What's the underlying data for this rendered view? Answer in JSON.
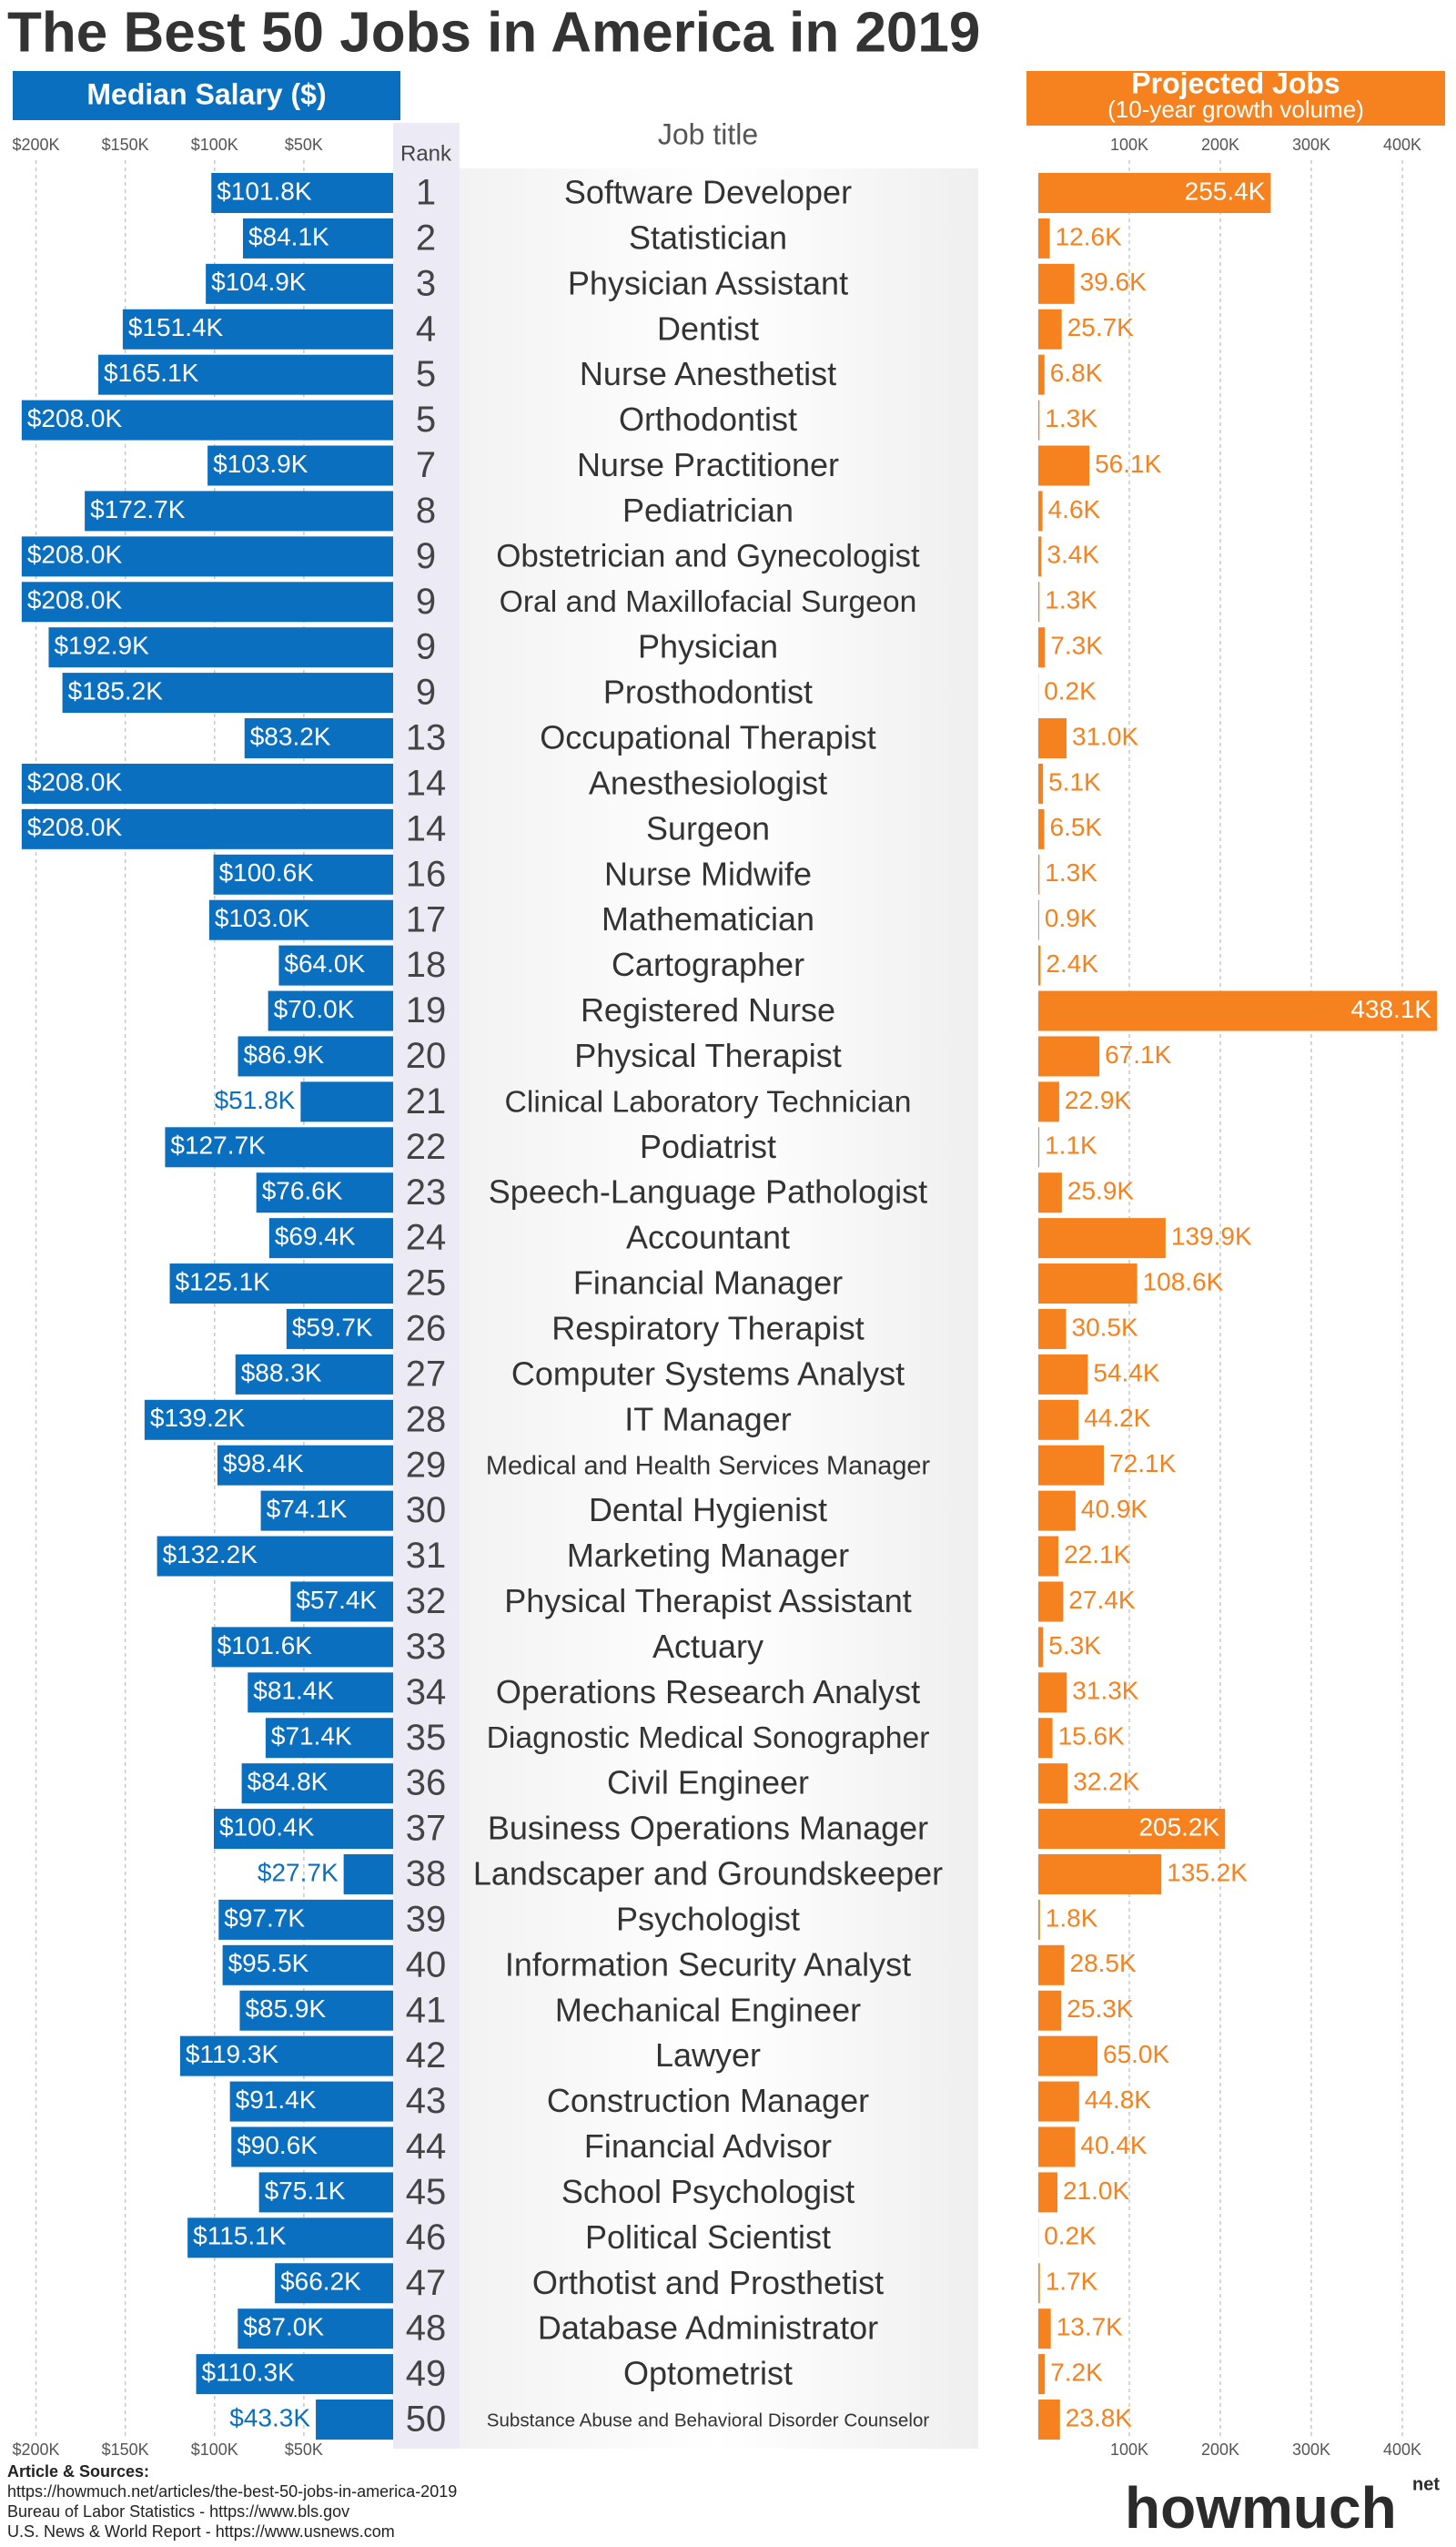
{
  "chart_data": {
    "type": "butterfly",
    "title": "The Best 50 Jobs in America in 2019",
    "rank_label": "Rank",
    "category_label": "Job title",
    "categories": [
      "Software Developer",
      "Statistician",
      "Physician Assistant",
      "Dentist",
      "Nurse Anesthetist",
      "Orthodontist",
      "Nurse Practitioner",
      "Pediatrician",
      "Obstetrician and Gynecologist",
      "Oral and Maxillofacial Surgeon",
      "Physician",
      "Prosthodontist",
      "Occupational Therapist",
      "Anesthesiologist",
      "Surgeon",
      "Nurse Midwife",
      "Mathematician",
      "Cartographer",
      "Registered Nurse",
      "Physical Therapist",
      "Clinical Laboratory Technician",
      "Podiatrist",
      "Speech-Language Pathologist",
      "Accountant",
      "Financial Manager",
      "Respiratory Therapist",
      "Computer Systems Analyst",
      "IT Manager",
      "Medical and Health Services Manager",
      "Dental Hygienist",
      "Marketing Manager",
      "Physical Therapist Assistant",
      "Actuary",
      "Operations Research Analyst",
      "Diagnostic Medical Sonographer",
      "Civil Engineer",
      "Business Operations Manager",
      "Landscaper and Groundskeeper",
      "Psychologist",
      "Information Security Analyst",
      "Mechanical Engineer",
      "Lawyer",
      "Construction Manager",
      "Financial Advisor",
      "School Psychologist",
      "Political Scientist",
      "Orthotist and Prosthetist",
      "Database Administrator",
      "Optometrist",
      "Substance Abuse and Behavioral Disorder Counselor"
    ],
    "ranks": [
      1,
      2,
      3,
      4,
      5,
      5,
      7,
      8,
      9,
      9,
      9,
      9,
      13,
      14,
      14,
      16,
      17,
      18,
      19,
      20,
      21,
      22,
      23,
      24,
      25,
      26,
      27,
      28,
      29,
      30,
      31,
      32,
      33,
      34,
      35,
      36,
      37,
      38,
      39,
      40,
      41,
      42,
      43,
      44,
      45,
      46,
      47,
      48,
      49,
      50
    ],
    "left": {
      "title": "Median Salary ($)",
      "color": "#0b6fc0",
      "reversed": true,
      "grid": true,
      "xlim": [
        0,
        212
      ],
      "xticks": [
        {
          "value": 200,
          "label": "$200K"
        },
        {
          "value": 150,
          "label": "$150K"
        },
        {
          "value": 100,
          "label": "$100K"
        },
        {
          "value": 50,
          "label": "$50K"
        }
      ],
      "values": [
        101.8,
        84.1,
        104.9,
        151.4,
        165.1,
        208.0,
        103.9,
        172.7,
        208.0,
        208.0,
        192.9,
        185.2,
        83.2,
        208.0,
        208.0,
        100.6,
        103.0,
        64.0,
        70.0,
        86.9,
        51.8,
        127.7,
        76.6,
        69.4,
        125.1,
        59.7,
        88.3,
        139.2,
        98.4,
        74.1,
        132.2,
        57.4,
        101.6,
        81.4,
        71.4,
        84.8,
        100.4,
        27.7,
        97.7,
        95.5,
        85.9,
        119.3,
        91.4,
        90.6,
        75.1,
        115.1,
        66.2,
        87.0,
        110.3,
        43.3
      ],
      "value_labels": [
        "$101.8K",
        "$84.1K",
        "$104.9K",
        "$151.4K",
        "$165.1K",
        "$208.0K",
        "$103.9K",
        "$172.7K",
        "$208.0K",
        "$208.0K",
        "$192.9K",
        "$185.2K",
        "$83.2K",
        "$208.0K",
        "$208.0K",
        "$100.6K",
        "$103.0K",
        "$64.0K",
        "$70.0K",
        "$86.9K",
        "$51.8K",
        "$127.7K",
        "$76.6K",
        "$69.4K",
        "$125.1K",
        "$59.7K",
        "$88.3K",
        "$139.2K",
        "$98.4K",
        "$74.1K",
        "$132.2K",
        "$57.4K",
        "$101.6K",
        "$81.4K",
        "$71.4K",
        "$84.8K",
        "$100.4K",
        "$27.7K",
        "$97.7K",
        "$95.5K",
        "$85.9K",
        "$119.3K",
        "$91.4K",
        "$90.6K",
        "$75.1K",
        "$115.1K",
        "$66.2K",
        "$87.0K",
        "$110.3K",
        "$43.3K"
      ]
    },
    "right": {
      "title": "Projected Jobs",
      "subtitle": "(10-year growth volume)",
      "color": "#f5821f",
      "reversed": false,
      "grid": true,
      "xlim": [
        0,
        440
      ],
      "xticks": [
        {
          "value": 100,
          "label": "100K"
        },
        {
          "value": 200,
          "label": "200K"
        },
        {
          "value": 300,
          "label": "300K"
        },
        {
          "value": 400,
          "label": "400K"
        }
      ],
      "values": [
        255.4,
        12.6,
        39.6,
        25.7,
        6.8,
        1.3,
        56.1,
        4.6,
        3.4,
        1.3,
        7.3,
        0.2,
        31.0,
        5.1,
        6.5,
        1.3,
        0.9,
        2.4,
        438.1,
        67.1,
        22.9,
        1.1,
        25.9,
        139.9,
        108.6,
        30.5,
        54.4,
        44.2,
        72.1,
        40.9,
        22.1,
        27.4,
        5.3,
        31.3,
        15.6,
        32.2,
        205.2,
        135.2,
        1.8,
        28.5,
        25.3,
        65.0,
        44.8,
        40.4,
        21.0,
        0.2,
        1.7,
        13.7,
        7.2,
        23.8
      ],
      "value_labels": [
        "255.4K",
        "12.6K",
        "39.6K",
        "25.7K",
        "6.8K",
        "1.3K",
        "56.1K",
        "4.6K",
        "3.4K",
        "1.3K",
        "7.3K",
        "0.2K",
        "31.0K",
        "5.1K",
        "6.5K",
        "1.3K",
        "0.9K",
        "2.4K",
        "438.1K",
        "67.1K",
        "22.9K",
        "1.1K",
        "25.9K",
        "139.9K",
        "108.6K",
        "30.5K",
        "54.4K",
        "44.2K",
        "72.1K",
        "40.9K",
        "22.1K",
        "27.4K",
        "5.3K",
        "31.3K",
        "15.6K",
        "32.2K",
        "205.2K",
        "135.2K",
        "1.8K",
        "28.5K",
        "25.3K",
        "65.0K",
        "44.8K",
        "40.4K",
        "21.0K",
        "0.2K",
        "1.7K",
        "13.7K",
        "7.2K",
        "23.8K"
      ]
    }
  },
  "sources": {
    "heading": "Article & Sources:",
    "lines": [
      "https://howmuch.net/articles/the-best-50-jobs-in-america-2019",
      "Bureau of Labor Statistics - https://www.bls.gov",
      "U.S. News & World Report - https://www.usnews.com"
    ]
  },
  "logo": {
    "name": "howmuch",
    "suffix": "net"
  }
}
